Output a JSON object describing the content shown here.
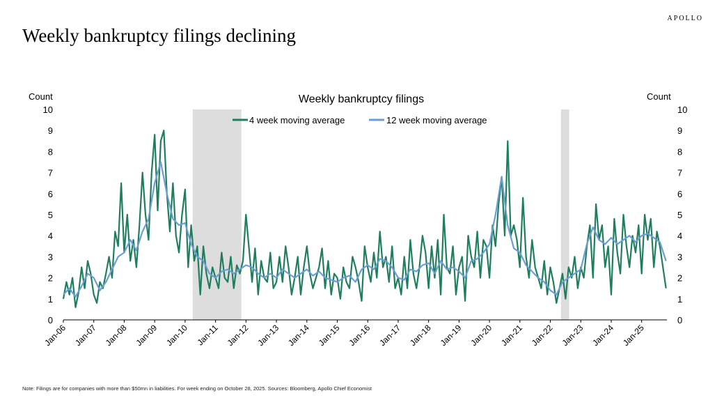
{
  "brand": "APOLLO",
  "headline": "Weekly bankruptcy filings declining",
  "note": "Note: Filings are for companies with more than $50mn in liabilities. For week ending on October 28, 2025. Sources: Bloomberg, Apollo Chief Economist",
  "colors": {
    "series1": "#1e7e5e",
    "series2": "#6a9ed4",
    "recession": "#dcdddc"
  },
  "chart_data": {
    "type": "line",
    "title": "Weekly bankruptcy filings",
    "ylabel_left": "Count",
    "ylabel_right": "Count",
    "ylim": [
      0,
      10
    ],
    "yticks": [
      "0",
      "1",
      "2",
      "3",
      "4",
      "5",
      "6",
      "7",
      "8",
      "9",
      "10"
    ],
    "xlim": [
      2006.0,
      2025.83
    ],
    "xticks": [
      {
        "x": 2006.0,
        "label": "Jan-06"
      },
      {
        "x": 2007.0,
        "label": "Jan-07"
      },
      {
        "x": 2008.0,
        "label": "Jan-08"
      },
      {
        "x": 2009.0,
        "label": "Jan-09"
      },
      {
        "x": 2010.0,
        "label": "Jan-10"
      },
      {
        "x": 2011.0,
        "label": "Jan-11"
      },
      {
        "x": 2012.0,
        "label": "Jan-12"
      },
      {
        "x": 2013.0,
        "label": "Jan-13"
      },
      {
        "x": 2014.0,
        "label": "Jan-14"
      },
      {
        "x": 2015.0,
        "label": "Jan-15"
      },
      {
        "x": 2016.0,
        "label": "Jan-16"
      },
      {
        "x": 2017.0,
        "label": "Jan-17"
      },
      {
        "x": 2018.0,
        "label": "Jan-18"
      },
      {
        "x": 2019.0,
        "label": "Jan-19"
      },
      {
        "x": 2020.0,
        "label": "Jan-20"
      },
      {
        "x": 2021.0,
        "label": "Jan-21"
      },
      {
        "x": 2022.0,
        "label": "Jan-22"
      },
      {
        "x": 2023.0,
        "label": "Jan-23"
      },
      {
        "x": 2024.0,
        "label": "Jan-24"
      },
      {
        "x": 2025.0,
        "label": "Jan-25"
      }
    ],
    "shaded_periods": [
      [
        2010.25,
        2011.85
      ],
      [
        2022.35,
        2022.62
      ]
    ],
    "series": [
      {
        "name": "4 week moving average",
        "x": [
          2006.0,
          2006.1,
          2006.2,
          2006.3,
          2006.4,
          2006.5,
          2006.6,
          2006.7,
          2006.8,
          2006.9,
          2007.0,
          2007.1,
          2007.2,
          2007.3,
          2007.4,
          2007.5,
          2007.6,
          2007.7,
          2007.8,
          2007.9,
          2008.0,
          2008.1,
          2008.2,
          2008.3,
          2008.4,
          2008.5,
          2008.6,
          2008.7,
          2008.8,
          2008.9,
          2009.0,
          2009.1,
          2009.2,
          2009.3,
          2009.4,
          2009.5,
          2009.6,
          2009.7,
          2009.8,
          2009.9,
          2010.0,
          2010.1,
          2010.2,
          2010.3,
          2010.4,
          2010.5,
          2010.6,
          2010.7,
          2010.8,
          2010.9,
          2011.0,
          2011.1,
          2011.2,
          2011.3,
          2011.4,
          2011.5,
          2011.6,
          2011.7,
          2011.8,
          2011.9,
          2012.0,
          2012.1,
          2012.2,
          2012.3,
          2012.4,
          2012.5,
          2012.6,
          2012.7,
          2012.8,
          2012.9,
          2013.0,
          2013.1,
          2013.2,
          2013.3,
          2013.4,
          2013.5,
          2013.6,
          2013.7,
          2013.8,
          2013.9,
          2014.0,
          2014.1,
          2014.2,
          2014.3,
          2014.4,
          2014.5,
          2014.6,
          2014.7,
          2014.8,
          2014.9,
          2015.0,
          2015.1,
          2015.2,
          2015.3,
          2015.4,
          2015.5,
          2015.6,
          2015.7,
          2015.8,
          2015.9,
          2016.0,
          2016.1,
          2016.2,
          2016.3,
          2016.4,
          2016.5,
          2016.6,
          2016.7,
          2016.8,
          2016.9,
          2017.0,
          2017.1,
          2017.2,
          2017.3,
          2017.4,
          2017.5,
          2017.6,
          2017.7,
          2017.8,
          2017.9,
          2018.0,
          2018.1,
          2018.2,
          2018.3,
          2018.4,
          2018.5,
          2018.6,
          2018.7,
          2018.8,
          2018.9,
          2019.0,
          2019.1,
          2019.2,
          2019.3,
          2019.4,
          2019.5,
          2019.6,
          2019.7,
          2019.8,
          2019.9,
          2020.0,
          2020.1,
          2020.2,
          2020.3,
          2020.4,
          2020.5,
          2020.6,
          2020.7,
          2020.8,
          2020.9,
          2021.0,
          2021.1,
          2021.2,
          2021.3,
          2021.4,
          2021.5,
          2021.6,
          2021.7,
          2021.8,
          2021.9,
          2022.0,
          2022.1,
          2022.2,
          2022.3,
          2022.4,
          2022.5,
          2022.6,
          2022.7,
          2022.8,
          2022.9,
          2023.0,
          2023.1,
          2023.2,
          2023.3,
          2023.4,
          2023.5,
          2023.6,
          2023.7,
          2023.8,
          2023.9,
          2024.0,
          2024.1,
          2024.2,
          2024.3,
          2024.4,
          2024.5,
          2024.6,
          2024.7,
          2024.8,
          2024.9,
          2025.0,
          2025.1,
          2025.2,
          2025.3,
          2025.4,
          2025.5,
          2025.6,
          2025.7,
          2025.8
        ],
        "values": [
          1.0,
          1.8,
          1.2,
          2.0,
          0.6,
          1.3,
          2.5,
          1.5,
          2.8,
          2.2,
          1.2,
          0.8,
          1.8,
          1.5,
          2.2,
          3.0,
          2.0,
          4.2,
          3.5,
          6.5,
          3.2,
          5.0,
          2.8,
          3.8,
          2.5,
          4.5,
          7.0,
          5.0,
          3.8,
          7.0,
          8.8,
          5.2,
          8.5,
          9.0,
          6.0,
          4.2,
          6.5,
          4.0,
          3.2,
          5.0,
          6.2,
          2.5,
          4.5,
          2.8,
          3.5,
          1.2,
          3.5,
          2.2,
          1.5,
          2.5,
          2.0,
          1.5,
          3.2,
          2.0,
          1.8,
          3.0,
          1.5,
          2.6,
          2.2,
          2.8,
          5.0,
          3.4,
          1.8,
          3.4,
          1.2,
          2.8,
          2.0,
          1.8,
          3.2,
          1.5,
          1.8,
          3.0,
          1.8,
          3.5,
          2.5,
          1.2,
          2.0,
          3.0,
          1.2,
          2.5,
          3.5,
          2.2,
          1.5,
          2.0,
          2.5,
          3.4,
          1.5,
          2.8,
          1.2,
          2.2,
          2.0,
          1.0,
          2.5,
          1.8,
          1.5,
          3.0,
          2.5,
          1.8,
          0.9,
          3.5,
          2.5,
          1.8,
          3.2,
          2.0,
          4.2,
          2.5,
          3.0,
          1.8,
          3.5,
          1.5,
          2.0,
          1.2,
          3.0,
          1.5,
          3.8,
          2.2,
          1.5,
          2.5,
          4.0,
          3.2,
          1.5,
          3.5,
          2.0,
          3.8,
          1.2,
          5.0,
          2.5,
          2.2,
          3.5,
          1.2,
          2.5,
          3.0,
          0.9,
          4.0,
          3.0,
          2.5,
          4.2,
          2.0,
          3.8,
          3.5,
          2.0,
          4.5,
          3.5,
          5.5,
          6.8,
          4.0,
          8.5,
          4.0,
          4.5,
          3.8,
          2.5,
          5.8,
          3.0,
          2.0,
          3.8,
          2.5,
          2.0,
          1.5,
          2.8,
          1.2,
          2.5,
          1.8,
          0.8,
          1.5,
          2.2,
          1.0,
          2.5,
          2.0,
          3.0,
          1.5,
          2.5,
          2.0,
          3.5,
          4.5,
          2.0,
          5.5,
          3.8,
          4.5,
          2.5,
          3.5,
          1.2,
          4.8,
          3.2,
          2.2,
          5.0,
          3.5,
          2.5,
          4.0,
          3.2,
          4.5,
          2.2,
          5.0,
          3.8,
          4.8,
          2.5,
          4.2,
          3.5,
          2.5,
          1.5
        ]
      },
      {
        "name": "12 week moving average",
        "x": [
          2006.0,
          2006.2,
          2006.4,
          2006.6,
          2006.8,
          2007.0,
          2007.2,
          2007.4,
          2007.6,
          2007.8,
          2008.0,
          2008.2,
          2008.4,
          2008.6,
          2008.8,
          2009.0,
          2009.2,
          2009.4,
          2009.6,
          2009.8,
          2010.0,
          2010.2,
          2010.4,
          2010.6,
          2010.8,
          2011.0,
          2011.2,
          2011.4,
          2011.6,
          2011.8,
          2012.0,
          2012.2,
          2012.4,
          2012.6,
          2012.8,
          2013.0,
          2013.2,
          2013.4,
          2013.6,
          2013.8,
          2014.0,
          2014.2,
          2014.4,
          2014.6,
          2014.8,
          2015.0,
          2015.2,
          2015.4,
          2015.6,
          2015.8,
          2016.0,
          2016.2,
          2016.4,
          2016.6,
          2016.8,
          2017.0,
          2017.2,
          2017.4,
          2017.6,
          2017.8,
          2018.0,
          2018.2,
          2018.4,
          2018.6,
          2018.8,
          2019.0,
          2019.2,
          2019.4,
          2019.6,
          2019.8,
          2020.0,
          2020.2,
          2020.4,
          2020.6,
          2020.8,
          2021.0,
          2021.2,
          2021.4,
          2021.6,
          2021.8,
          2022.0,
          2022.2,
          2022.4,
          2022.6,
          2022.8,
          2023.0,
          2023.2,
          2023.4,
          2023.6,
          2023.8,
          2024.0,
          2024.2,
          2024.4,
          2024.6,
          2024.8,
          2025.0,
          2025.2,
          2025.4,
          2025.6,
          2025.8
        ],
        "values": [
          1.2,
          1.5,
          1.1,
          1.6,
          2.2,
          2.0,
          1.4,
          1.8,
          2.4,
          3.0,
          3.2,
          3.8,
          3.3,
          4.2,
          4.8,
          6.5,
          7.5,
          6.0,
          4.8,
          4.5,
          4.6,
          3.6,
          3.0,
          2.8,
          2.2,
          2.0,
          2.3,
          2.4,
          2.2,
          2.4,
          2.6,
          2.5,
          2.2,
          2.0,
          2.2,
          2.0,
          2.4,
          2.2,
          2.0,
          2.2,
          2.4,
          2.1,
          2.3,
          2.0,
          1.9,
          1.8,
          2.0,
          2.1,
          1.8,
          2.4,
          2.6,
          2.4,
          2.9,
          2.8,
          2.5,
          2.0,
          1.9,
          2.4,
          2.3,
          2.6,
          2.7,
          2.2,
          2.8,
          2.4,
          2.5,
          2.3,
          2.0,
          2.8,
          2.9,
          3.2,
          3.6,
          5.0,
          6.8,
          4.5,
          3.4,
          3.2,
          2.6,
          2.3,
          2.0,
          1.8,
          1.4,
          1.2,
          1.8,
          2.0,
          2.2,
          2.4,
          3.6,
          4.4,
          3.8,
          3.6,
          3.9,
          3.6,
          3.8,
          4.0,
          3.7,
          4.0,
          4.1,
          3.9,
          3.7,
          2.8
        ]
      }
    ]
  }
}
